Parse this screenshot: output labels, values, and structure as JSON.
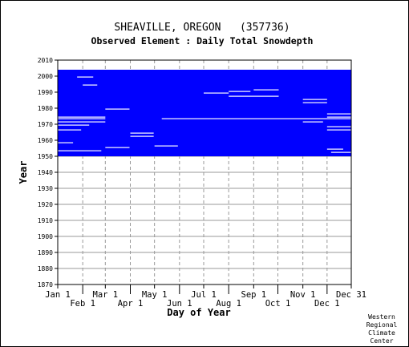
{
  "chart_data": {
    "type": "heatmap",
    "title": "SHEAVILLE, OREGON   (357736)",
    "subtitle": "Observed Element : Daily Total Snowdepth",
    "xlabel": "Day of Year",
    "ylabel": "Year",
    "credit": [
      "Western",
      "Regional",
      "Climate",
      "Center"
    ],
    "xlim": [
      1,
      365
    ],
    "ylim": [
      1870,
      2010
    ],
    "grid": true,
    "x_ticks_upper": [
      {
        "label": "Jan 1",
        "day": 1
      },
      {
        "label": "Mar 1",
        "day": 60
      },
      {
        "label": "May 1",
        "day": 121
      },
      {
        "label": "Jul 1",
        "day": 182
      },
      {
        "label": "Sep 1",
        "day": 244
      },
      {
        "label": "Nov 1",
        "day": 305
      },
      {
        "label": "Dec 31",
        "day": 365
      }
    ],
    "x_ticks_lower": [
      {
        "label": "Feb 1",
        "day": 32
      },
      {
        "label": "Apr 1",
        "day": 91
      },
      {
        "label": "Jun 1",
        "day": 152
      },
      {
        "label": "Aug 1",
        "day": 213
      },
      {
        "label": "Oct 1",
        "day": 274
      },
      {
        "label": "Dec 1",
        "day": 335
      }
    ],
    "y_ticks": [
      1870,
      1880,
      1890,
      1900,
      1910,
      1920,
      1930,
      1940,
      1950,
      1960,
      1970,
      1980,
      1990,
      2000,
      2010
    ],
    "series": [
      {
        "color": "#0000ff",
        "record_years": [
          1950,
          2003
        ],
        "missing_spans": [
          {
            "year": 1974,
            "days": [
              1,
              60
            ]
          },
          {
            "year": 1973,
            "days": [
              1,
              60
            ]
          },
          {
            "year": 1971,
            "days": [
              1,
              60
            ]
          },
          {
            "year": 1969,
            "days": [
              1,
              40
            ]
          },
          {
            "year": 1966,
            "days": [
              1,
              30
            ]
          },
          {
            "year": 1958,
            "days": [
              1,
              20
            ]
          },
          {
            "year": 1953,
            "days": [
              1,
              55
            ]
          },
          {
            "year": 1973,
            "days": [
              130,
              365
            ]
          },
          {
            "year": 1989,
            "days": [
              182,
              213
            ]
          },
          {
            "year": 1990,
            "days": [
              213,
              240
            ]
          },
          {
            "year": 1991,
            "days": [
              244,
              275
            ]
          },
          {
            "year": 1987,
            "days": [
              213,
              275
            ]
          },
          {
            "year": 1956,
            "days": [
              121,
              150
            ]
          },
          {
            "year": 1955,
            "days": [
              60,
              90
            ]
          },
          {
            "year": 1964,
            "days": [
              91,
              120
            ]
          },
          {
            "year": 1962,
            "days": [
              91,
              120
            ]
          },
          {
            "year": 1979,
            "days": [
              60,
              90
            ]
          },
          {
            "year": 1994,
            "days": [
              32,
              50
            ]
          },
          {
            "year": 1999,
            "days": [
              25,
              45
            ]
          },
          {
            "year": 1985,
            "days": [
              305,
              335
            ]
          },
          {
            "year": 1983,
            "days": [
              305,
              335
            ]
          },
          {
            "year": 1976,
            "days": [
              335,
              365
            ]
          },
          {
            "year": 1974,
            "days": [
              335,
              365
            ]
          },
          {
            "year": 1971,
            "days": [
              305,
              330
            ]
          },
          {
            "year": 1968,
            "days": [
              335,
              365
            ]
          },
          {
            "year": 1966,
            "days": [
              335,
              365
            ]
          },
          {
            "year": 1954,
            "days": [
              335,
              355
            ]
          },
          {
            "year": 1952,
            "days": [
              340,
              365
            ]
          }
        ]
      }
    ]
  }
}
